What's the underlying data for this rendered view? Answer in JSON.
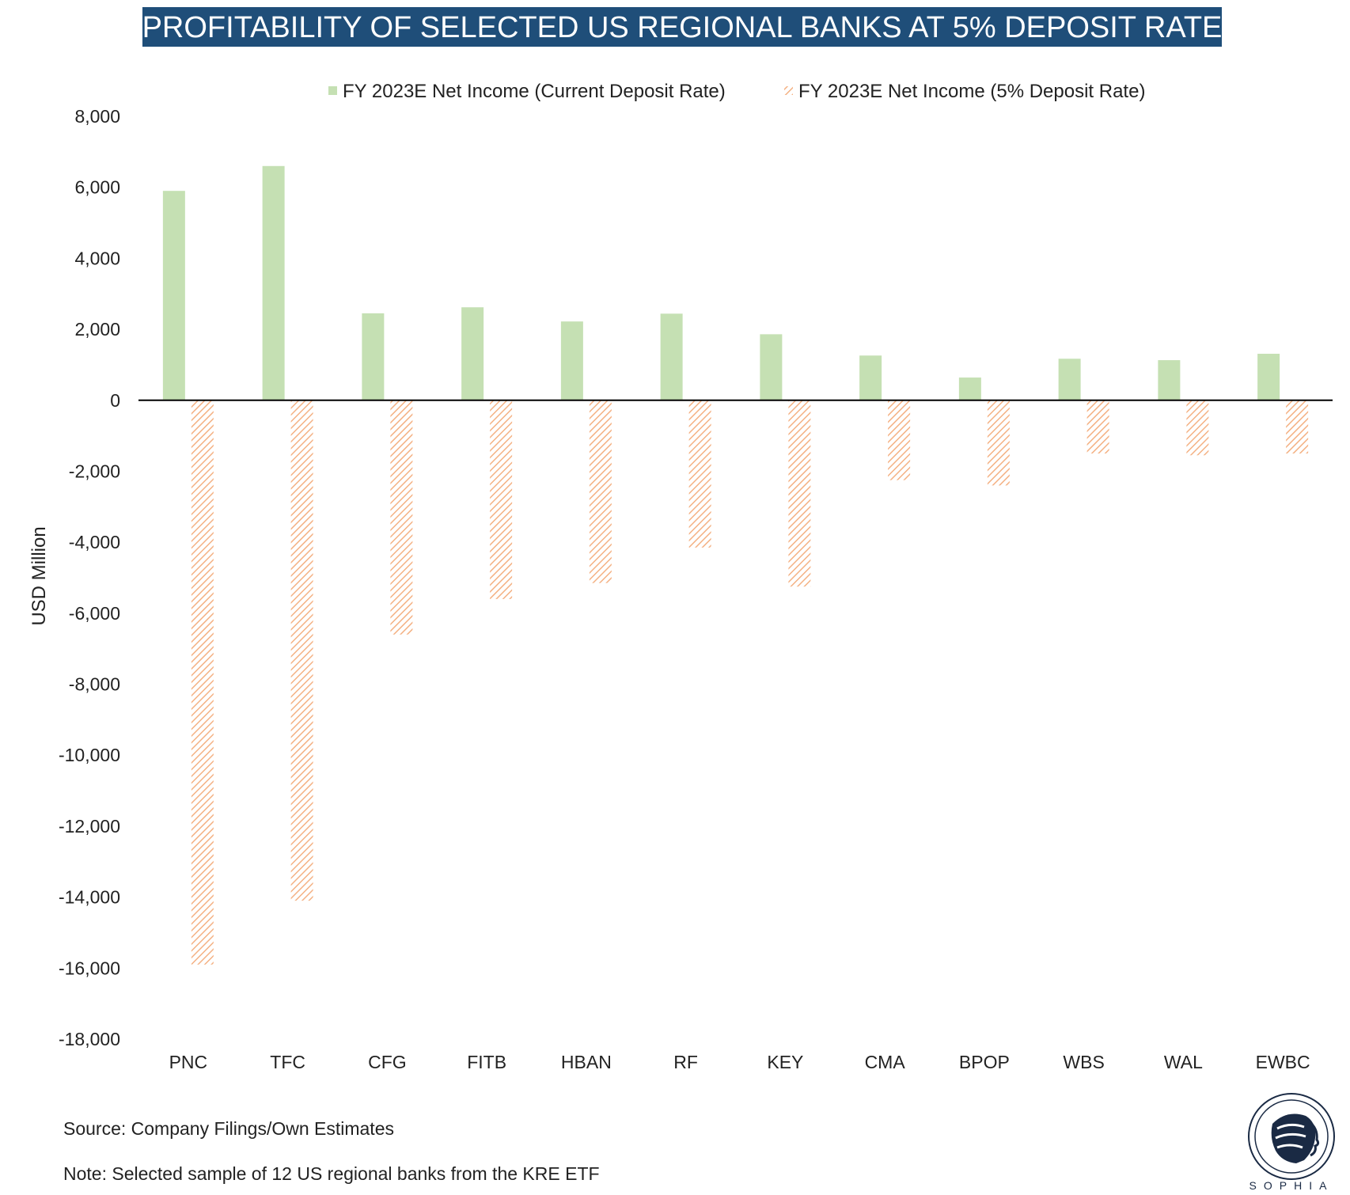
{
  "chart_data": {
    "type": "bar",
    "title": "PROFITABILITY OF SELECTED US REGIONAL BANKS AT 5% DEPOSIT RATE",
    "ylabel": "USD Million",
    "xlabel": "",
    "categories": [
      "PNC",
      "TFC",
      "CFG",
      "FITB",
      "HBAN",
      "RF",
      "KEY",
      "CMA",
      "BPOP",
      "WBS",
      "WAL",
      "EWBC"
    ],
    "series": [
      {
        "name": "FY 2023E Net Income (Current Deposit Rate)",
        "color": "#c5e0b3",
        "pattern": "solid",
        "values": [
          5900,
          6600,
          2450,
          2620,
          2220,
          2440,
          1860,
          1260,
          640,
          1170,
          1130,
          1310
        ]
      },
      {
        "name": "FY 2023E Net Income (5% Deposit Rate)",
        "color": "#f4b183",
        "pattern": "hatched",
        "values": [
          -15900,
          -14100,
          -6600,
          -5600,
          -5150,
          -4150,
          -5250,
          -2250,
          -2400,
          -1500,
          -1550,
          -1500
        ]
      }
    ],
    "ylim": [
      -18000,
      8000
    ],
    "yticks": [
      "8,000",
      "6,000",
      "4,000",
      "2,000",
      "0",
      "-2,000",
      "-4,000",
      "-6,000",
      "-8,000",
      "-10,000",
      "-12,000",
      "-14,000",
      "-16,000",
      "-18,000"
    ],
    "ytick_values": [
      8000,
      6000,
      4000,
      2000,
      0,
      -2000,
      -4000,
      -6000,
      -8000,
      -10000,
      -12000,
      -14000,
      -16000,
      -18000
    ],
    "grid": false,
    "legend_position": "top"
  },
  "colors": {
    "title_bg": "#1f4e79",
    "title_text": "#ffffff",
    "zero_line": "#000000"
  },
  "footer": {
    "source": "Source: Company Filings/Own Estimates",
    "note": "Note: Selected sample of 12 US regional banks from the KRE ETF"
  },
  "logo": {
    "text": "SOPHIA",
    "icon": "sophia-head-logo-icon"
  }
}
